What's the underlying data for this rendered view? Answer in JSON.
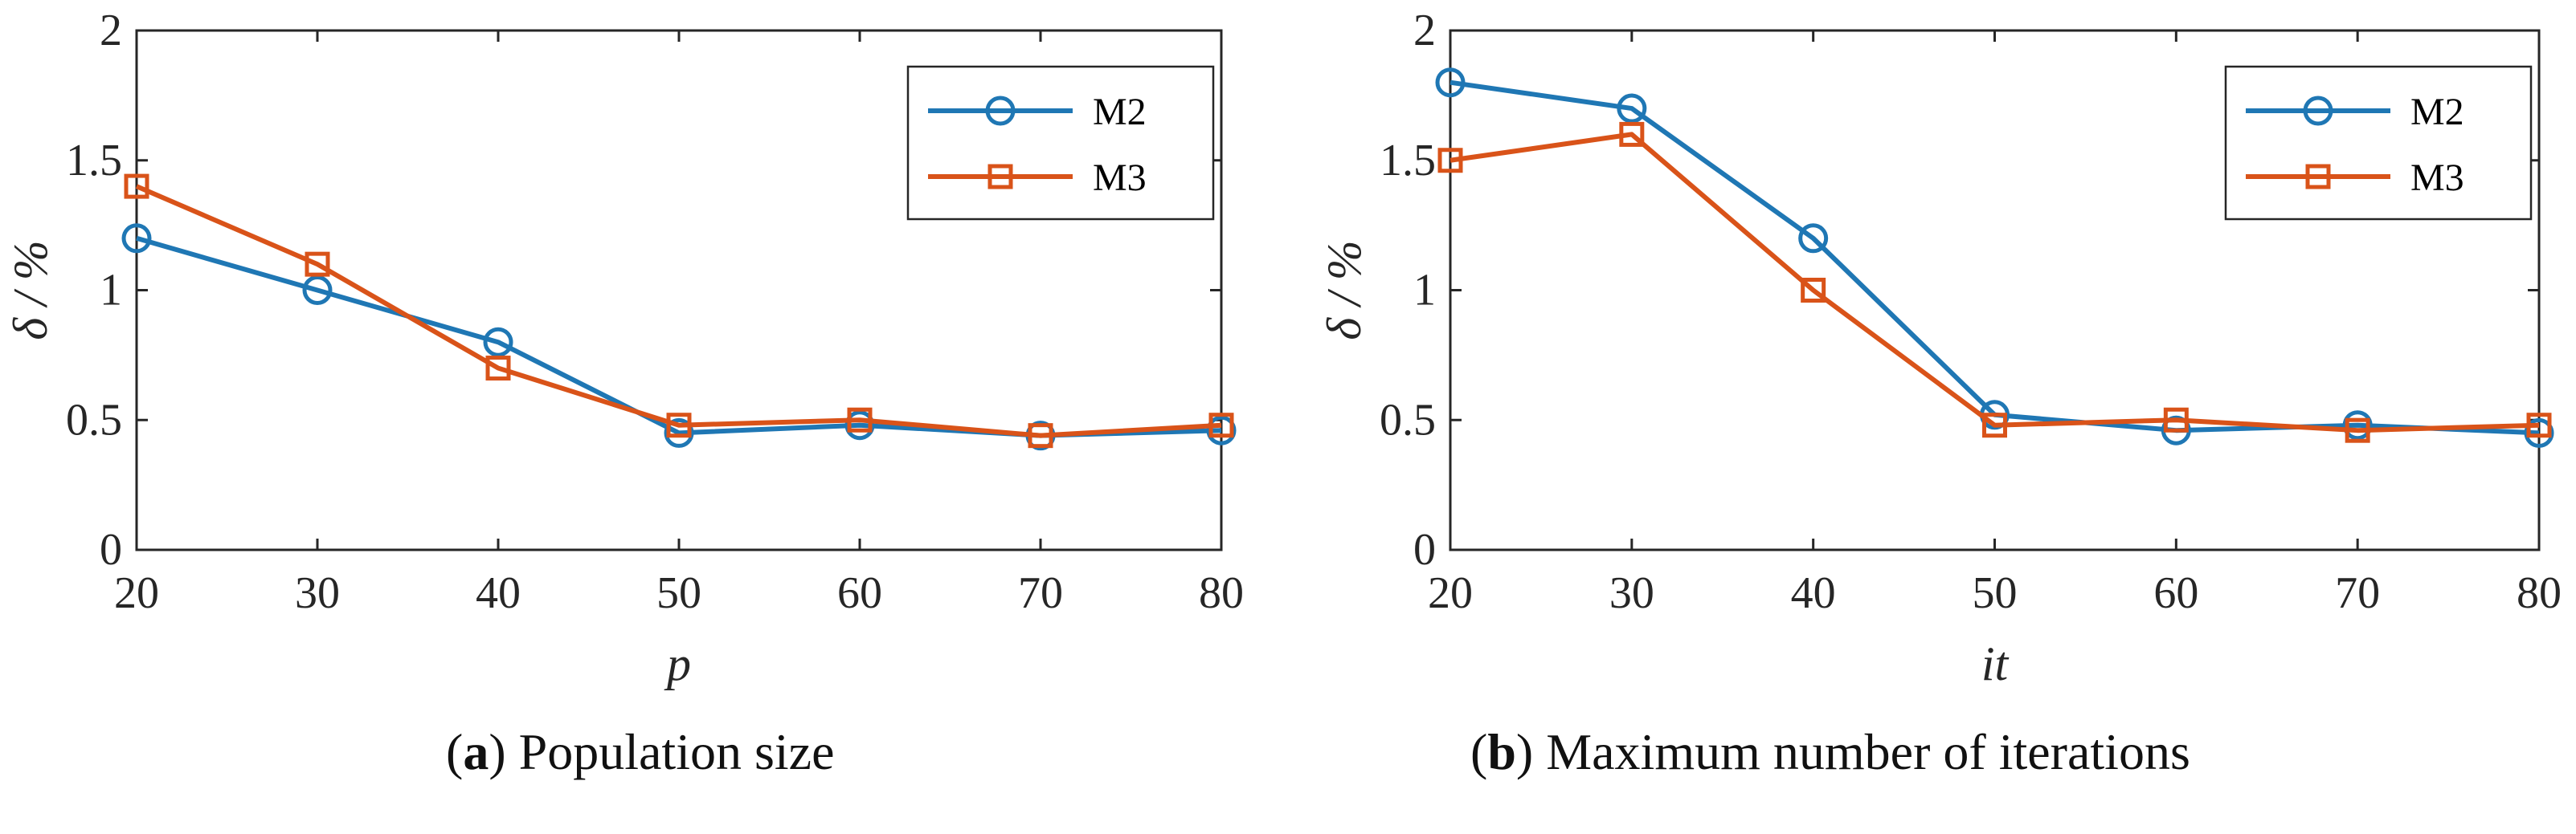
{
  "chart_data": [
    {
      "type": "line",
      "id": "a",
      "caption_letter": "a",
      "caption_text": "Population size",
      "xlabel": "p",
      "ylabel": "δ / %",
      "xlim": [
        20,
        80
      ],
      "ylim": [
        0,
        2
      ],
      "xticks": [
        20,
        30,
        40,
        50,
        60,
        70,
        80
      ],
      "yticks": [
        0,
        0.5,
        1,
        1.5,
        2
      ],
      "yticklabels": [
        "0",
        "0.5",
        "1",
        "1.5",
        "2"
      ],
      "legend_position": "top-right",
      "x": [
        20,
        30,
        40,
        50,
        60,
        70,
        80
      ],
      "series": [
        {
          "name": "M2",
          "color": "#1f77b4",
          "marker": "circle",
          "values": [
            1.2,
            1.0,
            0.8,
            0.45,
            0.48,
            0.44,
            0.46
          ]
        },
        {
          "name": "M3",
          "color": "#d95319",
          "marker": "square",
          "values": [
            1.4,
            1.1,
            0.7,
            0.48,
            0.5,
            0.44,
            0.48
          ]
        }
      ]
    },
    {
      "type": "line",
      "id": "b",
      "caption_letter": "b",
      "caption_text": "Maximum number of iterations",
      "xlabel": "it",
      "ylabel": "δ / %",
      "xlim": [
        20,
        80
      ],
      "ylim": [
        0,
        2
      ],
      "xticks": [
        20,
        30,
        40,
        50,
        60,
        70,
        80
      ],
      "yticks": [
        0,
        0.5,
        1,
        1.5,
        2
      ],
      "yticklabels": [
        "0",
        "0.5",
        "1",
        "1.5",
        "2"
      ],
      "legend_position": "top-right",
      "x": [
        20,
        30,
        40,
        50,
        60,
        70,
        80
      ],
      "series": [
        {
          "name": "M2",
          "color": "#1f77b4",
          "marker": "circle",
          "values": [
            1.8,
            1.7,
            1.2,
            0.52,
            0.46,
            0.48,
            0.45
          ]
        },
        {
          "name": "M3",
          "color": "#d95319",
          "marker": "square",
          "values": [
            1.5,
            1.6,
            1.0,
            0.48,
            0.5,
            0.46,
            0.48
          ]
        }
      ]
    }
  ]
}
